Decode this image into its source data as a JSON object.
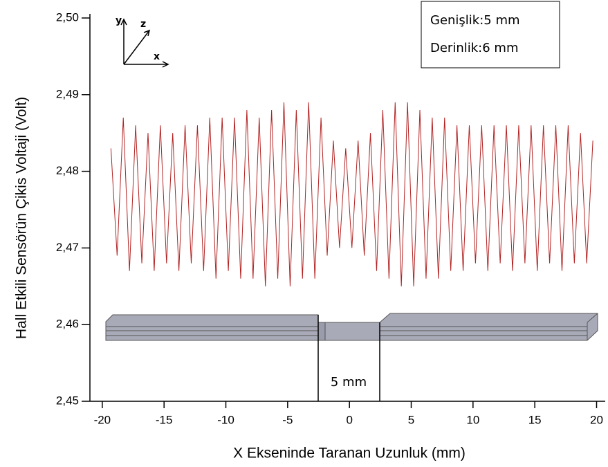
{
  "chart_data": {
    "type": "line",
    "xlabel": "X Ekseninde Taranan Uzunluk (mm)",
    "ylabel": "Hall Etkili Sensörün Çikis Voltaji (Volt)",
    "color": "#b22222",
    "xlim": [
      -21,
      20.7
    ],
    "ylim": [
      2.45,
      2.5
    ],
    "xticks": [
      -20,
      -15,
      -10,
      -5,
      0,
      5,
      10,
      15,
      20
    ],
    "yticks": [
      {
        "value": 2.45,
        "label": "2,45"
      },
      {
        "value": 2.46,
        "label": "2,46"
      },
      {
        "value": 2.47,
        "label": "2,47"
      },
      {
        "value": 2.48,
        "label": "2,48"
      },
      {
        "value": 2.49,
        "label": "2,49"
      },
      {
        "value": 2.5,
        "label": "2,50"
      }
    ],
    "annotations": {
      "info_box": [
        "Genişlik:5 mm",
        "Derinlik:6 mm"
      ],
      "gap_label": "5 mm",
      "axes_glyph": [
        "y",
        "z",
        "x"
      ]
    },
    "x": [
      -19.3,
      -18.8,
      -18.3,
      -17.8,
      -17.3,
      -16.8,
      -16.3,
      -15.8,
      -15.3,
      -14.8,
      -14.3,
      -13.8,
      -13.3,
      -12.8,
      -12.3,
      -11.8,
      -11.3,
      -10.8,
      -10.3,
      -9.8,
      -9.3,
      -8.8,
      -8.3,
      -7.8,
      -7.3,
      -6.8,
      -6.3,
      -5.8,
      -5.3,
      -4.8,
      -4.3,
      -3.8,
      -3.3,
      -2.8,
      -2.3,
      -1.8,
      -1.3,
      -0.8,
      -0.3,
      0.2,
      0.7,
      1.2,
      1.7,
      2.2,
      2.7,
      3.2,
      3.7,
      4.2,
      4.7,
      5.2,
      5.7,
      6.2,
      6.7,
      7.2,
      7.7,
      8.2,
      8.7,
      9.2,
      9.7,
      10.2,
      10.7,
      11.2,
      11.7,
      12.2,
      12.7,
      13.2,
      13.7,
      14.2,
      14.7,
      15.2,
      15.7,
      16.2,
      16.7,
      17.2,
      17.7,
      18.2,
      18.7,
      19.2,
      19.7
    ],
    "values": [
      2.483,
      2.469,
      2.487,
      2.467,
      2.486,
      2.468,
      2.485,
      2.467,
      2.486,
      2.468,
      2.485,
      2.467,
      2.486,
      2.468,
      2.486,
      2.467,
      2.487,
      2.466,
      2.487,
      2.467,
      2.487,
      2.466,
      2.488,
      2.466,
      2.487,
      2.465,
      2.488,
      2.466,
      2.489,
      2.465,
      2.488,
      2.466,
      2.489,
      2.466,
      2.487,
      2.469,
      2.484,
      2.47,
      2.483,
      2.47,
      2.484,
      2.469,
      2.485,
      2.467,
      2.488,
      2.466,
      2.489,
      2.465,
      2.489,
      2.465,
      2.488,
      2.466,
      2.487,
      2.466,
      2.487,
      2.467,
      2.486,
      2.467,
      2.486,
      2.468,
      2.486,
      2.467,
      2.486,
      2.468,
      2.486,
      2.467,
      2.486,
      2.468,
      2.486,
      2.467,
      2.486,
      2.468,
      2.486,
      2.467,
      2.486,
      2.468,
      2.485,
      2.468,
      2.484
    ]
  }
}
